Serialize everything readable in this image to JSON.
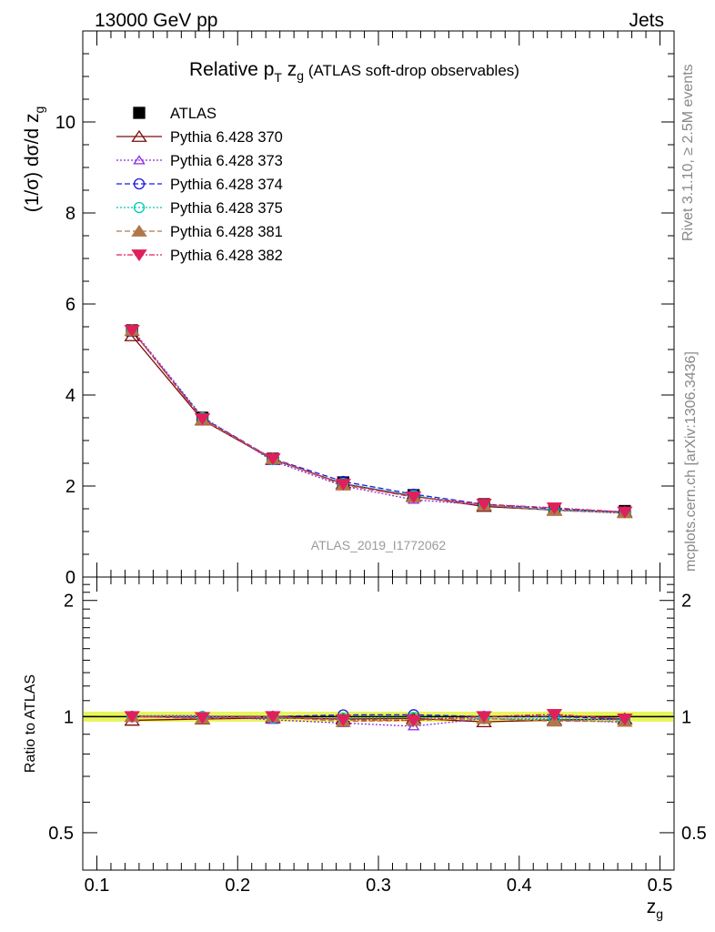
{
  "header": {
    "left": "13000 GeV pp",
    "right": "Jets"
  },
  "chart_data": [
    {
      "type": "line",
      "title_main": "Relative p",
      "title_sub": "T",
      "title_mid": " z",
      "title_sub2": "g",
      "title_tail": " (ATLAS soft-drop observables)",
      "ylabel": "(1/σ) dσ/d z",
      "ylabel_sub": "g",
      "ylim": [
        0,
        12
      ],
      "yticks": [
        0,
        2,
        4,
        6,
        8,
        10
      ],
      "ytick_labels": [
        "0",
        "2",
        "4",
        "6",
        "8",
        "10"
      ],
      "watermark": "ATLAS_2019_I1772062",
      "x": [
        0.125,
        0.175,
        0.225,
        0.275,
        0.325,
        0.375,
        0.425,
        0.475
      ],
      "series": [
        {
          "name": "ATLAS",
          "color": "#000000",
          "values": [
            5.42,
            3.5,
            2.6,
            2.08,
            1.8,
            1.6,
            1.5,
            1.45
          ]
        },
        {
          "name": "Pythia 6.428 370",
          "color": "#7a0a0a",
          "values": [
            5.3,
            3.45,
            2.58,
            2.05,
            1.78,
            1.55,
            1.47,
            1.43
          ]
        },
        {
          "name": "Pythia 6.428 373",
          "color": "#8a2be2",
          "values": [
            5.45,
            3.52,
            2.55,
            2.0,
            1.7,
            1.58,
            1.47,
            1.4
          ]
        },
        {
          "name": "Pythia 6.428 374",
          "color": "#1a1ae0",
          "values": [
            5.42,
            3.5,
            2.6,
            2.1,
            1.82,
            1.6,
            1.5,
            1.43
          ]
        },
        {
          "name": "Pythia 6.428 375",
          "color": "#00c8b4",
          "values": [
            5.42,
            3.5,
            2.58,
            2.06,
            1.79,
            1.58,
            1.48,
            1.42
          ]
        },
        {
          "name": "Pythia 6.428 381",
          "color": "#b0784a",
          "values": [
            5.42,
            3.46,
            2.6,
            2.02,
            1.76,
            1.58,
            1.46,
            1.41
          ]
        },
        {
          "name": "Pythia 6.428 382",
          "color": "#e0205a",
          "values": [
            5.42,
            3.48,
            2.6,
            2.04,
            1.76,
            1.6,
            1.52,
            1.43
          ]
        }
      ]
    },
    {
      "type": "line",
      "ylabel": "Ratio to ATLAS",
      "ylim": [
        0.4,
        2.3
      ],
      "log_y": true,
      "yticks": [
        0.5,
        1,
        2
      ],
      "ytick_labels": [
        "0.5",
        "1",
        "2"
      ],
      "xlabel": "z",
      "xlabel_sub": "g",
      "xlim": [
        0.09,
        0.51
      ],
      "xticks": [
        0.1,
        0.2,
        0.3,
        0.4,
        0.5
      ],
      "xtick_labels": [
        "0.1",
        "0.2",
        "0.3",
        "0.4",
        "0.5"
      ],
      "band_color": "#e8f55a",
      "x": [
        0.125,
        0.175,
        0.225,
        0.275,
        0.325,
        0.375,
        0.425,
        0.475
      ],
      "series": [
        {
          "name": "Pythia 6.428 370",
          "color": "#7a0a0a",
          "values": [
            0.978,
            0.986,
            0.992,
            0.986,
            0.989,
            0.969,
            0.98,
            0.986
          ]
        },
        {
          "name": "Pythia 6.428 373",
          "color": "#8a2be2",
          "values": [
            1.005,
            1.006,
            0.981,
            0.962,
            0.944,
            0.988,
            0.98,
            0.966
          ]
        },
        {
          "name": "Pythia 6.428 374",
          "color": "#1a1ae0",
          "values": [
            1.0,
            1.0,
            1.0,
            1.01,
            1.011,
            1.0,
            1.0,
            0.986
          ]
        },
        {
          "name": "Pythia 6.428 375",
          "color": "#00c8b4",
          "values": [
            1.0,
            1.0,
            0.992,
            0.99,
            0.994,
            0.988,
            0.987,
            0.979
          ]
        },
        {
          "name": "Pythia 6.428 381",
          "color": "#b0784a",
          "values": [
            1.0,
            0.989,
            1.0,
            0.971,
            0.978,
            0.988,
            0.973,
            0.972
          ]
        },
        {
          "name": "Pythia 6.428 382",
          "color": "#e0205a",
          "values": [
            1.0,
            0.994,
            1.0,
            0.981,
            0.978,
            1.0,
            1.013,
            0.986
          ]
        }
      ]
    }
  ],
  "side_labels": {
    "rivet": "Rivet 3.1.10, ≥ 2.5M events",
    "mcplots": "mcplots.cern.ch [arXiv:1306.3436]"
  }
}
